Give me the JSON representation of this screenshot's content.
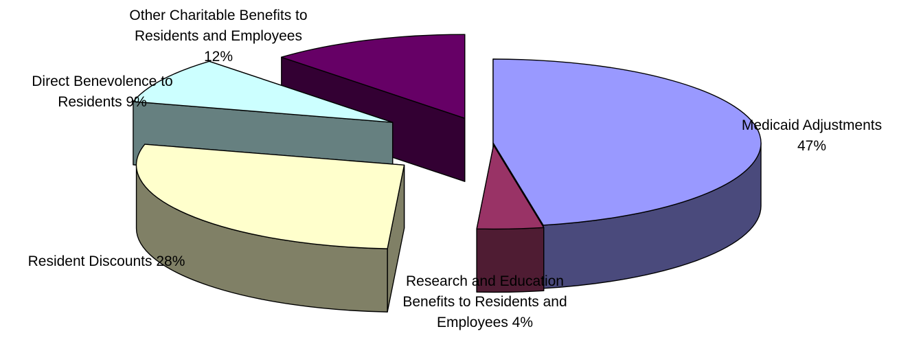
{
  "chart_data": {
    "type": "pie",
    "style": "3d-exploded",
    "title": "",
    "slices": [
      {
        "name": "Medicaid Adjustments",
        "percent": 47,
        "label_lines": [
          "Medicaid Adjustments",
          "47%"
        ],
        "top_color": "#9999ff",
        "side_color": "#4a4a7c"
      },
      {
        "name": "Research and Education Benefits to Residents and Employees",
        "percent": 4,
        "label_lines": [
          "Research and Education",
          "Benefits to Residents and",
          "Employees 4%"
        ],
        "top_color": "#993366",
        "side_color": "#4f1c33"
      },
      {
        "name": "Resident Discounts",
        "percent": 28,
        "label_lines": [
          "Resident Discounts 28%"
        ],
        "top_color": "#ffffcc",
        "side_color": "#808066"
      },
      {
        "name": "Direct Benevolence to Residents",
        "percent": 9,
        "label_lines": [
          "Direct Benevolence to",
          "Residents 9%"
        ],
        "top_color": "#ccffff",
        "side_color": "#668080"
      },
      {
        "name": "Other Charitable Benefits to Residents and Employees",
        "percent": 12,
        "label_lines": [
          "Other Charitable Benefits to",
          "Residents and Employees",
          "12%"
        ],
        "top_color": "#660066",
        "side_color": "#330033"
      }
    ]
  }
}
